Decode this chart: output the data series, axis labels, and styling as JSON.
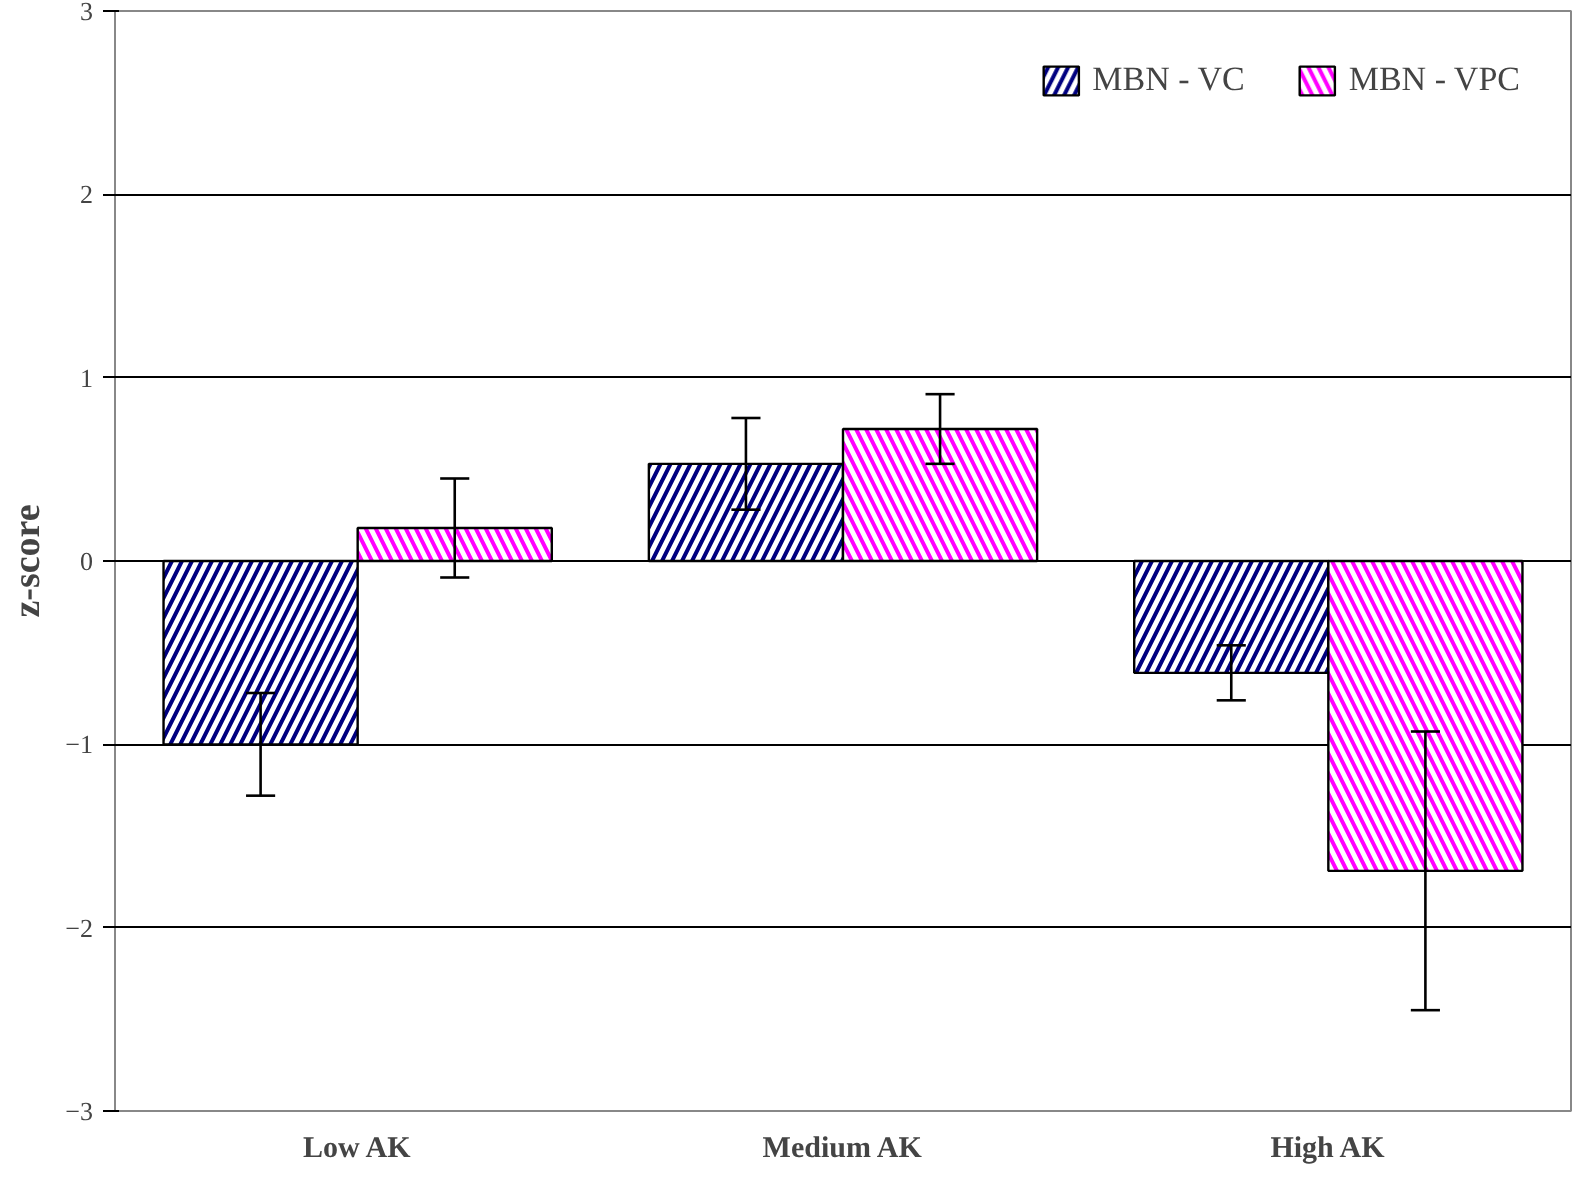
{
  "chart_data": {
    "type": "bar",
    "ylabel": "z-score",
    "categories": [
      "Low AK",
      "Medium AK",
      "High AK"
    ],
    "series": [
      {
        "name": "MBN - VC",
        "color": "#000080",
        "values": [
          -1.0,
          0.53,
          -0.61
        ],
        "errors": [
          0.28,
          0.25,
          0.15
        ]
      },
      {
        "name": "MBN - VPC",
        "color": "#ff00ff",
        "values": [
          0.18,
          0.72,
          -1.69
        ],
        "errors": [
          0.27,
          0.19,
          0.76
        ]
      }
    ],
    "ylim": [
      -3,
      3
    ],
    "yticks": [
      -3,
      -2,
      -1,
      0,
      1,
      2,
      3
    ],
    "grid": "y",
    "legend": "top right"
  }
}
